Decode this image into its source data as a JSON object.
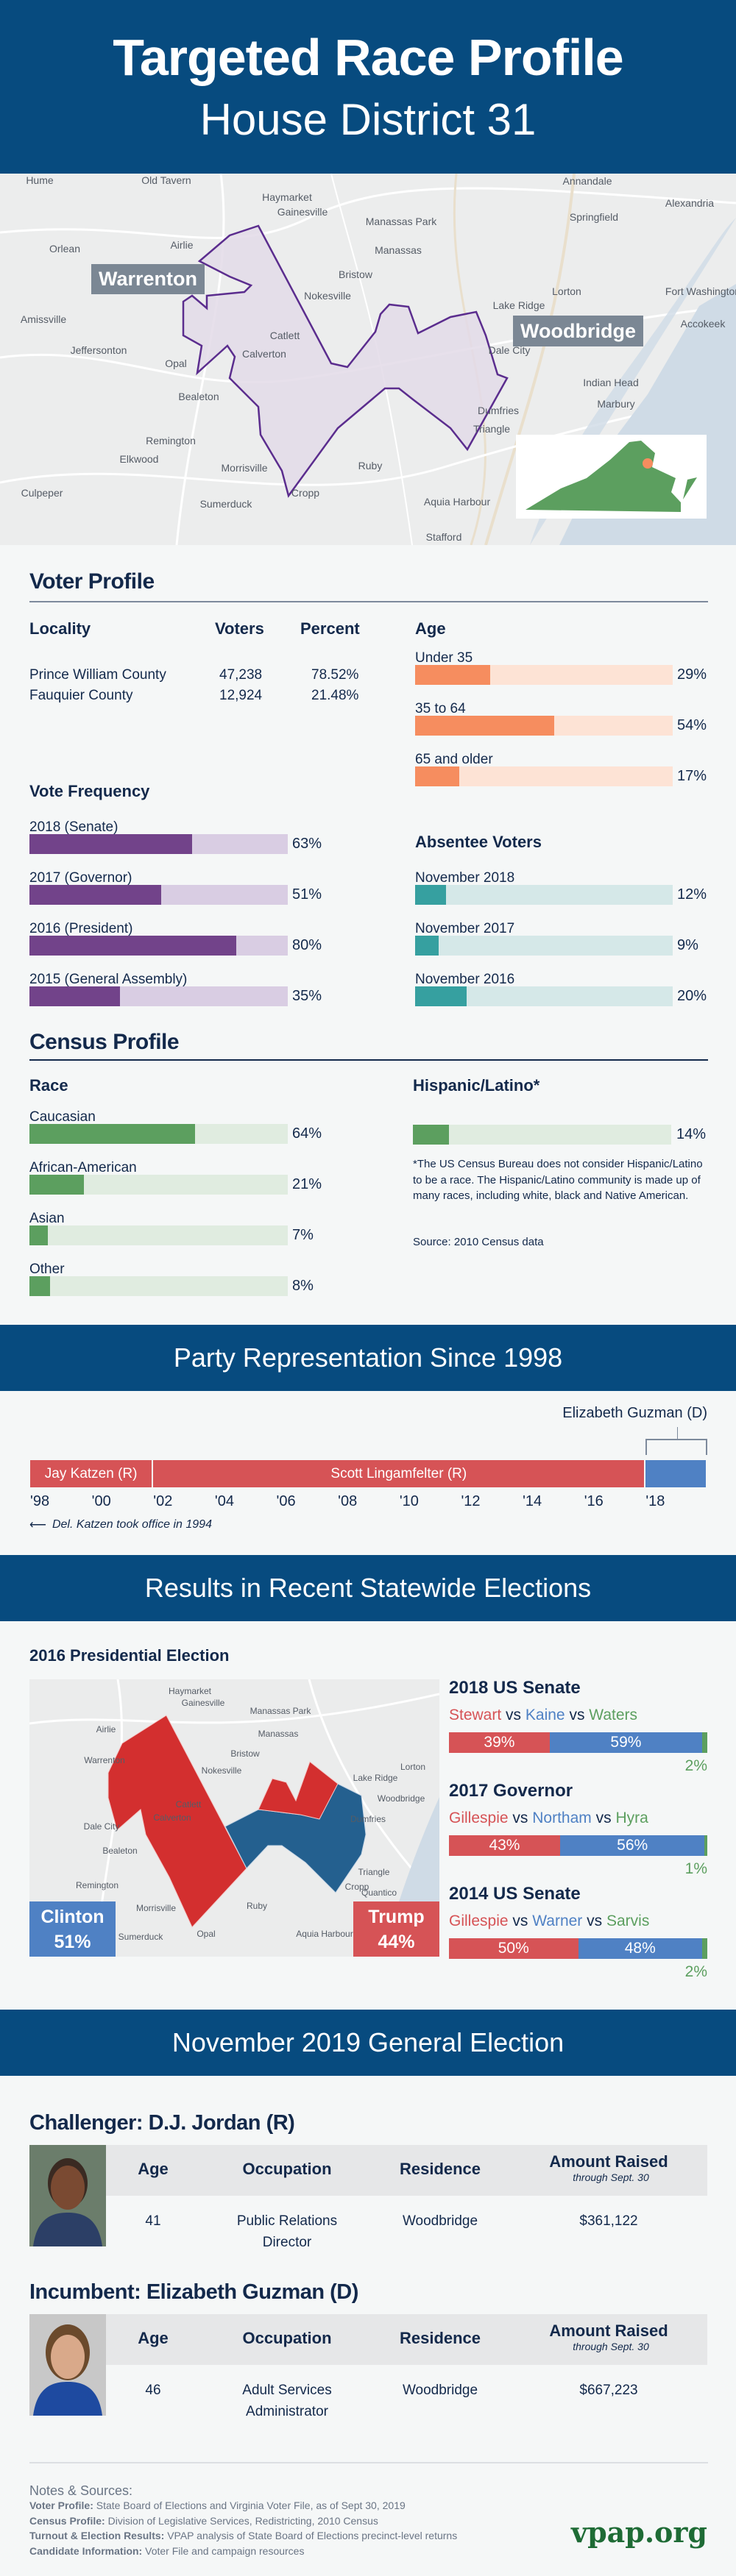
{
  "header": {
    "title": "Targeted Race Profile",
    "subtitle": "House District 31"
  },
  "district_map": {
    "places": [
      "Hume",
      "Old Tavern",
      "Haymarket",
      "Gainesville",
      "Manassas Park",
      "Manassas",
      "Annandale",
      "Springfield",
      "Alexandria",
      "Orlean",
      "Airlie",
      "Bristow",
      "Nokesville",
      "Lake Ridge",
      "Lorton",
      "Amissville",
      "Jeffersonton",
      "Catlett",
      "Calverton",
      "Opal",
      "Bealeton",
      "Dale City",
      "Accokeek",
      "Indian Head",
      "Marbury",
      "Dumfries",
      "Triangle",
      "Remington",
      "Elkwood",
      "Culpeper",
      "Morrisville",
      "Ruby",
      "Cropp",
      "Sumerduck",
      "Aquia Harbour",
      "Stafford",
      "Fort Washington"
    ],
    "callouts": [
      "Warrenton",
      "Woodbridge"
    ],
    "colors": {
      "district_fill": "#e3dbe8",
      "district_outline": "#5b2d8e",
      "state": "#5c9f5f",
      "marker": "#f68d5f"
    }
  },
  "voter_profile": {
    "title": "Voter Profile",
    "locality": {
      "headers": [
        "Locality",
        "Voters",
        "Percent"
      ],
      "rows": [
        [
          "Prince William County",
          "47,238",
          "78.52%"
        ],
        [
          "Fauquier County",
          "12,924",
          "21.48%"
        ]
      ]
    },
    "age": {
      "title": "Age",
      "color": "#f68d5f",
      "track": "#fde3d5",
      "items": [
        {
          "label": "Under 35",
          "value": 29,
          "text": "29%"
        },
        {
          "label": "35 to 64",
          "value": 54,
          "text": "54%"
        },
        {
          "label": "65 and older",
          "value": 17,
          "text": "17%"
        }
      ]
    },
    "vote_frequency": {
      "title": "Vote Frequency",
      "color": "#72438a",
      "track": "#d9cde3",
      "items": [
        {
          "label": "2018 (Senate)",
          "value": 63,
          "text": "63%"
        },
        {
          "label": "2017 (Governor)",
          "value": 51,
          "text": "51%"
        },
        {
          "label": "2016 (President)",
          "value": 80,
          "text": "80%"
        },
        {
          "label": "2015 (General Assembly)",
          "value": 35,
          "text": "35%"
        }
      ]
    },
    "absentee": {
      "title": "Absentee Voters",
      "color": "#36a0a0",
      "track": "#d5e8e8",
      "items": [
        {
          "label": "November 2018",
          "value": 12,
          "text": "12%"
        },
        {
          "label": "November 2017",
          "value": 9,
          "text": "9%"
        },
        {
          "label": "November 2016",
          "value": 20,
          "text": "20%"
        }
      ]
    }
  },
  "census": {
    "title": "Census Profile",
    "race": {
      "title": "Race",
      "color": "#5c9f5f",
      "track": "#e0ece0",
      "items": [
        {
          "label": "Caucasian",
          "value": 64,
          "text": "64%"
        },
        {
          "label": "African-American",
          "value": 21,
          "text": "21%"
        },
        {
          "label": "Asian",
          "value": 7,
          "text": "7%"
        },
        {
          "label": "Other",
          "value": 8,
          "text": "8%"
        }
      ]
    },
    "hispanic": {
      "title": "Hispanic/Latino*",
      "value": 14,
      "text": "14%",
      "footnote": "*The US Census Bureau does not consider Hispanic/Latino to be a race. The Hispanic/Latino community is made up of many races, including white, black and Native American.",
      "source": "Source: 2010 Census data"
    }
  },
  "party": {
    "title": "Party Representation Since 1998",
    "range": [
      1998,
      2020
    ],
    "segments": [
      {
        "name": "Jay Katzen (R)",
        "start": 1998,
        "end": 2002,
        "color": "#d65356"
      },
      {
        "name": "Scott Lingamfelter (R)",
        "start": 2002,
        "end": 2018,
        "color": "#d65356"
      },
      {
        "name": "",
        "start": 2018,
        "end": 2020,
        "color": "#4f81c4"
      }
    ],
    "guzman_label": "Elizabeth Guzman (D)",
    "ticks": [
      {
        "year": 1998,
        "label": "'98"
      },
      {
        "year": 2000,
        "label": "'00"
      },
      {
        "year": 2002,
        "label": "'02"
      },
      {
        "year": 2004,
        "label": "'04"
      },
      {
        "year": 2006,
        "label": "'06"
      },
      {
        "year": 2008,
        "label": "'08"
      },
      {
        "year": 2010,
        "label": "'10"
      },
      {
        "year": 2012,
        "label": "'12"
      },
      {
        "year": 2014,
        "label": "'14"
      },
      {
        "year": 2016,
        "label": "'16"
      },
      {
        "year": 2018,
        "label": "'18"
      }
    ],
    "note": "Del. Katzen took office in 1994"
  },
  "results": {
    "title": "Results in Recent Statewide Elections",
    "map_title": "2016 Presidential Election",
    "map_places": [
      "Haymarket",
      "Gainesville",
      "Manassas Park",
      "Manassas",
      "Bristow",
      "Nokesville",
      "Lake Ridge",
      "Woodbridge",
      "Warrenton",
      "Bealeton",
      "Remington",
      "Morrisville",
      "Ruby",
      "Quantico",
      "Sumerduck",
      "Airlie",
      "Lorton",
      "Catlett",
      "Calverton",
      "Dale City",
      "Dumfries",
      "Triangle",
      "Cropp",
      "Aquia Harbour",
      "Opal"
    ],
    "clinton": {
      "name": "Clinton",
      "pct": "51%",
      "color": "#4f81c4"
    },
    "trump": {
      "name": "Trump",
      "pct": "44%",
      "color": "#d65356"
    },
    "colors": {
      "rep": "#d65356",
      "dem": "#4f81c4",
      "other": "#5c9f5f",
      "map_rep": "#d32f2f",
      "map_dem": "#24608f"
    },
    "races": [
      {
        "title": "2018 US Senate",
        "names": [
          "Stewart",
          "Kaine",
          "Waters"
        ],
        "vs": "vs",
        "values": [
          39,
          59,
          2
        ],
        "labels": [
          "39%",
          "59%",
          "2%"
        ]
      },
      {
        "title": "2017 Governor",
        "names": [
          "Gillespie",
          "Northam",
          "Hyra"
        ],
        "vs": "vs",
        "values": [
          43,
          56,
          1
        ],
        "labels": [
          "43%",
          "56%",
          "1%"
        ]
      },
      {
        "title": "2014 US Senate",
        "names": [
          "Gillespie",
          "Warner",
          "Sarvis"
        ],
        "vs": "vs",
        "values": [
          50,
          48,
          2
        ],
        "labels": [
          "50%",
          "48%",
          "2%"
        ]
      }
    ]
  },
  "general": {
    "title": "November 2019 General Election",
    "headers": {
      "age": "Age",
      "occupation": "Occupation",
      "residence": "Residence",
      "amount": "Amount Raised",
      "amount_sub": "through Sept. 30"
    },
    "candidates": [
      {
        "heading": "Challenger: D.J. Jordan (R)",
        "age": "41",
        "occupation": [
          "Public Relations",
          "Director"
        ],
        "residence": "Woodbridge",
        "amount": "$361,122"
      },
      {
        "heading": "Incumbent: Elizabeth Guzman (D)",
        "age": "46",
        "occupation": [
          "Adult Services",
          "Administrator"
        ],
        "residence": "Woodbridge",
        "amount": "$667,223"
      }
    ]
  },
  "notes": {
    "title": "Notes & Sources:",
    "items": [
      {
        "label": "Voter Profile:",
        "text": " State Board of Elections and Virginia Voter File, as of Sept 30, 2019"
      },
      {
        "label": "Census Profile:",
        "text": " Division of Legislative Services, Redistricting, 2010 Census"
      },
      {
        "label": "Turnout & Election Results:",
        "text": " VPAP analysis of State Board of Elections precinct-level returns"
      },
      {
        "label": "Candidate Information:",
        "text": " Voter File and campaign resources"
      }
    ]
  },
  "logo": {
    "text": "vpap.org",
    "color": "#1e6b35"
  }
}
